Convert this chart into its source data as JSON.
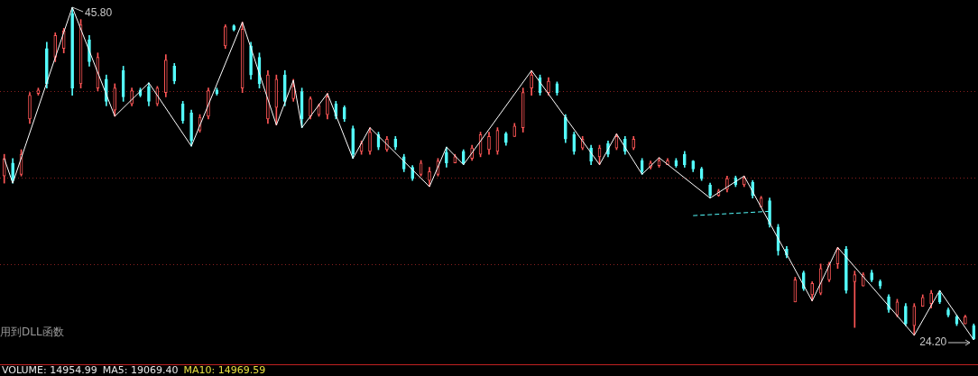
{
  "chart_data": {
    "type": "candlestick",
    "categories": [
      null,
      null,
      null,
      null,
      null,
      null,
      null,
      null,
      null,
      null,
      null,
      null,
      null,
      null,
      null,
      null,
      null,
      null,
      null,
      null,
      null,
      null,
      null,
      null,
      null,
      null,
      null,
      null,
      null,
      null,
      null,
      null,
      null,
      null,
      null,
      null,
      null,
      null,
      null,
      null,
      null,
      null,
      null,
      null,
      null,
      null,
      null,
      null,
      null,
      null,
      null,
      null,
      null,
      null,
      null,
      null,
      null,
      null,
      null,
      null,
      null,
      null,
      null,
      null,
      null,
      null,
      null,
      null,
      null,
      null,
      null,
      null,
      null,
      null,
      null,
      null,
      null,
      null,
      null,
      null,
      null,
      null,
      null,
      null,
      null,
      null,
      null,
      null,
      null,
      null,
      null,
      null,
      null,
      null,
      null,
      null,
      null,
      null,
      null,
      null,
      null,
      null,
      null,
      null,
      null,
      null,
      null,
      null,
      null,
      null,
      null,
      null,
      null,
      null,
      null
    ],
    "ohlc": [
      [
        34.84,
        36.25,
        34.38,
        35.98
      ],
      [
        35.69,
        35.98,
        34.38,
        34.55
      ],
      [
        34.95,
        36.55,
        34.84,
        36.25
      ],
      [
        38.55,
        40.26,
        38.26,
        40.09
      ],
      [
        40.2,
        40.55,
        40.09,
        40.43
      ],
      [
        43.12,
        43.52,
        40.55,
        40.83
      ],
      [
        42.55,
        44.14,
        42.26,
        43.97
      ],
      [
        43.12,
        44.43,
        42.83,
        44.26
      ],
      [
        45.4,
        45.8,
        40.09,
        40.55
      ],
      [
        40.83,
        45.0,
        40.55,
        44.66
      ],
      [
        43.69,
        43.97,
        41.97,
        42.26
      ],
      [
        40.55,
        42.83,
        40.38,
        42.55
      ],
      [
        41.12,
        41.4,
        39.4,
        39.69
      ],
      [
        39.12,
        40.83,
        38.72,
        40.55
      ],
      [
        41.69,
        41.97,
        39.69,
        39.98
      ],
      [
        39.52,
        40.55,
        39.4,
        40.38
      ],
      [
        40.43,
        40.55,
        39.98,
        40.09
      ],
      [
        40.66,
        40.89,
        39.4,
        39.69
      ],
      [
        39.52,
        40.66,
        39.4,
        40.55
      ],
      [
        40.26,
        42.72,
        39.98,
        42.37
      ],
      [
        41.97,
        42.15,
        40.83,
        41.0
      ],
      [
        39.52,
        39.69,
        38.26,
        38.43
      ],
      [
        38.95,
        39.12,
        36.78,
        37.12
      ],
      [
        37.81,
        38.83,
        37.69,
        38.66
      ],
      [
        38.72,
        40.55,
        38.55,
        40.38
      ],
      [
        40.43,
        40.55,
        40.09,
        40.2
      ],
      [
        43.29,
        44.66,
        43.12,
        44.54
      ],
      [
        44.6,
        44.66,
        44.26,
        44.32
      ],
      [
        40.55,
        44.83,
        40.26,
        44.37
      ],
      [
        43.29,
        43.52,
        41.12,
        41.4
      ],
      [
        42.55,
        42.83,
        40.55,
        40.83
      ],
      [
        38.55,
        41.69,
        38.26,
        41.4
      ],
      [
        39.29,
        41.4,
        38.15,
        41.12
      ],
      [
        41.4,
        41.69,
        39.4,
        39.69
      ],
      [
        39.86,
        41.12,
        39.69,
        40.66
      ],
      [
        40.32,
        40.55,
        37.98,
        38.55
      ],
      [
        38.72,
        39.98,
        38.55,
        39.86
      ],
      [
        38.83,
        39.52,
        38.72,
        39.4
      ],
      [
        38.83,
        40.2,
        38.55,
        39.98
      ],
      [
        39.52,
        39.69,
        38.55,
        38.72
      ],
      [
        39.29,
        39.4,
        38.38,
        38.55
      ],
      [
        37.92,
        38.09,
        35.98,
        36.25
      ],
      [
        36.44,
        37.12,
        36.25,
        36.95
      ],
      [
        36.44,
        37.98,
        36.25,
        37.69
      ],
      [
        37.52,
        37.69,
        36.55,
        36.72
      ],
      [
        36.55,
        37.41,
        36.44,
        37.24
      ],
      [
        37.24,
        37.41,
        36.55,
        36.72
      ],
      [
        36.09,
        36.25,
        35.12,
        35.3
      ],
      [
        35.41,
        35.52,
        34.55,
        34.67
      ],
      [
        34.95,
        35.85,
        34.84,
        35.69
      ],
      [
        34.55,
        35.41,
        34.15,
        35.12
      ],
      [
        34.95,
        35.98,
        34.84,
        35.81
      ],
      [
        36.38,
        36.72,
        35.41,
        35.69
      ],
      [
        35.69,
        36.25,
        35.69,
        36.09
      ],
      [
        36.44,
        36.55,
        35.58,
        35.69
      ],
      [
        35.98,
        36.84,
        35.85,
        36.66
      ],
      [
        36.25,
        37.69,
        36.09,
        37.52
      ],
      [
        36.55,
        37.69,
        36.25,
        37.41
      ],
      [
        36.44,
        37.98,
        36.25,
        37.81
      ],
      [
        37.58,
        37.69,
        36.84,
        37.01
      ],
      [
        37.41,
        38.26,
        37.41,
        38.09
      ],
      [
        37.98,
        40.55,
        37.69,
        40.26
      ],
      [
        40.55,
        41.69,
        40.09,
        41.4
      ],
      [
        41.23,
        41.4,
        40.09,
        40.26
      ],
      [
        40.26,
        41.23,
        40.09,
        41.0
      ],
      [
        40.83,
        40.95,
        40.09,
        40.26
      ],
      [
        38.66,
        38.83,
        37.01,
        37.24
      ],
      [
        37.52,
        37.69,
        36.25,
        36.44
      ],
      [
        36.66,
        37.41,
        36.55,
        37.24
      ],
      [
        36.66,
        36.84,
        35.58,
        35.81
      ],
      [
        36.09,
        36.84,
        35.58,
        36.66
      ],
      [
        36.95,
        37.12,
        36.09,
        36.25
      ],
      [
        36.66,
        37.58,
        36.55,
        37.41
      ],
      [
        37.24,
        37.41,
        36.25,
        36.44
      ],
      [
        36.66,
        37.41,
        36.55,
        37.24
      ],
      [
        35.85,
        35.98,
        34.95,
        35.12
      ],
      [
        35.41,
        35.81,
        35.3,
        35.69
      ],
      [
        35.52,
        36.03,
        35.41,
        35.85
      ],
      [
        35.58,
        35.98,
        35.58,
        35.85
      ],
      [
        35.85,
        35.98,
        35.41,
        35.52
      ],
      [
        36.25,
        36.44,
        35.41,
        35.58
      ],
      [
        35.81,
        35.85,
        35.12,
        35.3
      ],
      [
        35.3,
        35.41,
        34.55,
        34.67
      ],
      [
        34.27,
        34.38,
        33.41,
        33.58
      ],
      [
        33.58,
        33.98,
        33.52,
        33.87
      ],
      [
        33.98,
        34.84,
        33.81,
        34.67
      ],
      [
        34.72,
        34.84,
        34.15,
        34.27
      ],
      [
        34.27,
        34.84,
        34.15,
        34.72
      ],
      [
        34.44,
        34.55,
        33.41,
        33.58
      ],
      [
        32.84,
        33.52,
        32.84,
        33.41
      ],
      [
        33.24,
        33.41,
        31.52,
        31.7
      ],
      [
        31.52,
        31.7,
        29.7,
        29.98
      ],
      [
        30.1,
        30.27,
        29.53,
        29.7
      ],
      [
        26.67,
        28.27,
        26.67,
        28.1
      ],
      [
        28.56,
        28.67,
        27.41,
        27.53
      ],
      [
        27.13,
        27.98,
        26.73,
        27.87
      ],
      [
        27.24,
        29.13,
        27.13,
        28.84
      ],
      [
        28.1,
        29.24,
        27.98,
        29.13
      ],
      [
        29.13,
        30.21,
        28.84,
        30.1
      ],
      [
        30.1,
        30.27,
        27.24,
        27.41
      ],
      [
        27.98,
        28.67,
        25.01,
        28.44
      ],
      [
        27.7,
        28.56,
        27.7,
        28.44
      ],
      [
        28.56,
        28.73,
        27.98,
        28.1
      ],
      [
        27.98,
        28.1,
        27.53,
        27.7
      ],
      [
        27.01,
        27.13,
        25.99,
        26.16
      ],
      [
        25.81,
        26.84,
        25.7,
        26.67
      ],
      [
        26.39,
        26.56,
        25.13,
        25.24
      ],
      [
        25.13,
        26.56,
        24.5,
        26.39
      ],
      [
        26.39,
        27.13,
        26.39,
        26.96
      ],
      [
        26.56,
        27.41,
        26.27,
        27.24
      ],
      [
        27.24,
        27.41,
        26.56,
        26.67
      ],
      [
        26.16,
        26.27,
        25.7,
        25.81
      ],
      [
        25.7,
        25.81,
        25.13,
        25.24
      ],
      [
        25.24,
        25.81,
        25.24,
        25.7
      ],
      [
        25.13,
        25.24,
        24.2,
        24.27
      ]
    ],
    "colors": [
      "#ff5656",
      "#54fcfc",
      "#ff5656",
      "#ff5656",
      "#ff5656",
      "#54fcfc",
      "#ff5656",
      "#ff5656",
      "#54fcfc",
      "#ff5656",
      "#54fcfc",
      "#ff5656",
      "#54fcfc",
      "#ff5656",
      "#54fcfc",
      "#ff5656",
      "#54fcfc",
      "#54fcfc",
      "#ff5656",
      "#ff5656",
      "#54fcfc",
      "#54fcfc",
      "#54fcfc",
      "#ff5656",
      "#ff5656",
      "#54fcfc",
      "#ff5656",
      "#54fcfc",
      "#ff5656",
      "#54fcfc",
      "#54fcfc",
      "#ff5656",
      "#ff5656",
      "#54fcfc",
      "#ff5656",
      "#54fcfc",
      "#ff5656",
      "#ff5656",
      "#ff5656",
      "#54fcfc",
      "#54fcfc",
      "#54fcfc",
      "#ff5656",
      "#ff5656",
      "#54fcfc",
      "#ff5656",
      "#54fcfc",
      "#54fcfc",
      "#54fcfc",
      "#ff5656",
      "#ff5656",
      "#ff5656",
      "#54fcfc",
      "#ff5656",
      "#54fcfc",
      "#ff5656",
      "#ff5656",
      "#ff5656",
      "#ff5656",
      "#54fcfc",
      "#ff5656",
      "#ff5656",
      "#ff5656",
      "#54fcfc",
      "#ff5656",
      "#54fcfc",
      "#54fcfc",
      "#54fcfc",
      "#ff5656",
      "#54fcfc",
      "#ff5656",
      "#54fcfc",
      "#ff5656",
      "#54fcfc",
      "#ff5656",
      "#54fcfc",
      "#ff5656",
      "#ff5656",
      "#ff5656",
      "#54fcfc",
      "#54fcfc",
      "#54fcfc",
      "#54fcfc",
      "#54fcfc",
      "#ff5656",
      "#ff5656",
      "#54fcfc",
      "#ff5656",
      "#54fcfc",
      "#ff5656",
      "#54fcfc",
      "#54fcfc",
      "#54fcfc",
      "#ff5656",
      "#54fcfc",
      "#ff5656",
      "#ff5656",
      "#ff5656",
      "#ff5656",
      "#54fcfc",
      "#ff5656",
      "#ff5656",
      "#54fcfc",
      "#54fcfc",
      "#54fcfc",
      "#ff5656",
      "#54fcfc",
      "#ff5656",
      "#ff5656",
      "#ff5656",
      "#54fcfc",
      "#54fcfc",
      "#54fcfc",
      "#ff5656",
      "#54fcfc"
    ],
    "series": [
      {
        "type": "line",
        "color": "#ffffff",
        "line_style": "solid",
        "values": [
          35.98,
          34.38,
          null,
          null,
          null,
          null,
          null,
          null,
          45.8,
          null,
          null,
          null,
          null,
          38.72,
          null,
          null,
          null,
          40.89,
          null,
          null,
          null,
          null,
          36.78,
          null,
          null,
          null,
          null,
          null,
          44.83,
          null,
          null,
          null,
          38.15,
          null,
          41.06,
          37.98,
          null,
          null,
          40.2,
          null,
          null,
          35.98,
          null,
          37.98,
          null,
          null,
          null,
          null,
          null,
          null,
          34.15,
          null,
          36.72,
          null,
          35.58,
          null,
          null,
          null,
          null,
          null,
          null,
          null,
          41.69,
          null,
          null,
          null,
          null,
          null,
          null,
          null,
          35.58,
          null,
          37.58,
          null,
          null,
          34.95,
          null,
          36.03,
          null,
          null,
          null,
          null,
          null,
          33.41,
          null,
          null,
          null,
          34.84,
          null,
          null,
          null,
          null,
          null,
          null,
          null,
          26.73,
          null,
          null,
          30.21,
          null,
          null,
          null,
          null,
          null,
          null,
          null,
          null,
          24.5,
          null,
          null,
          27.41,
          null,
          null,
          null,
          24.2
        ]
      },
      {
        "type": "line",
        "color": "#54fcfc",
        "line_style": "dashed",
        "values": [
          null,
          null,
          null,
          null,
          null,
          null,
          null,
          null,
          null,
          null,
          null,
          null,
          null,
          null,
          null,
          null,
          null,
          null,
          null,
          null,
          null,
          null,
          null,
          null,
          null,
          null,
          null,
          null,
          null,
          null,
          null,
          null,
          null,
          null,
          null,
          null,
          null,
          null,
          null,
          null,
          null,
          null,
          null,
          null,
          null,
          null,
          null,
          null,
          null,
          null,
          null,
          null,
          null,
          null,
          null,
          null,
          null,
          null,
          null,
          null,
          null,
          null,
          null,
          null,
          null,
          null,
          null,
          null,
          null,
          null,
          null,
          null,
          null,
          null,
          null,
          null,
          null,
          null,
          null,
          null,
          null,
          32.27,
          null,
          null,
          null,
          null,
          null,
          null,
          null,
          null,
          32.55,
          null,
          null,
          null,
          null,
          null,
          null,
          null,
          null,
          null,
          null,
          null,
          null,
          null,
          null,
          null,
          null,
          null,
          null,
          null,
          null,
          null,
          null,
          null,
          null
        ]
      }
    ],
    "yticks": [
      {
        "value": 29.1,
        "label": null
      },
      {
        "value": 34.7,
        "label": null
      },
      {
        "value": 40.3,
        "label": null
      }
    ],
    "grid": "y",
    "tick_labels": false,
    "annotations": [
      "45.80",
      "24.20",
      "用到DLL函数",
      "VOLUME: 14954.99",
      "MA5: 19069.40",
      "MA10: 14969.59"
    ]
  }
}
